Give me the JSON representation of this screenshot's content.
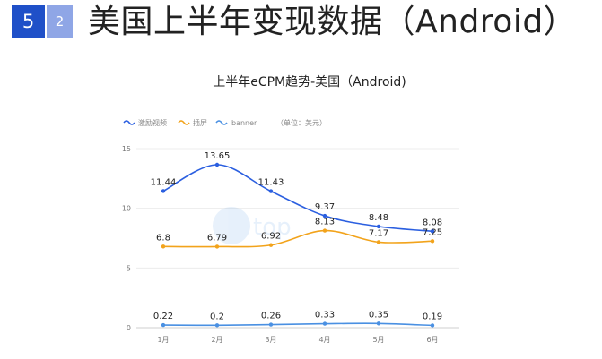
{
  "header": {
    "section_number": "5",
    "sub_number": "2",
    "title": "美国上半年变现数据（Android）"
  },
  "colors": {
    "badge_major": "#1f50c8",
    "badge_minor": "#8fa6e6"
  },
  "chart_data": {
    "type": "line",
    "title": "上半年eCPM趋势-美国（Android)",
    "unit_note": "（单位：美元）",
    "xlabel": "",
    "ylabel": "",
    "categories": [
      "1月",
      "2月",
      "3月",
      "4月",
      "5月",
      "6月"
    ],
    "ylim": [
      0,
      15
    ],
    "yticks": [
      "0",
      "5",
      "10",
      "15"
    ],
    "grid": true,
    "legend_position": "top-left",
    "series": [
      {
        "name": "激励视频",
        "color": "#2b5fe0",
        "values": [
          11.44,
          13.65,
          11.43,
          9.37,
          8.48,
          8.08
        ]
      },
      {
        "name": "插屏",
        "color": "#f2a31b",
        "values": [
          6.8,
          6.79,
          6.92,
          8.13,
          7.17,
          7.25
        ]
      },
      {
        "name": "banner",
        "color": "#4a90e2",
        "values": [
          0.22,
          0.2,
          0.26,
          0.33,
          0.35,
          0.19
        ]
      }
    ]
  }
}
